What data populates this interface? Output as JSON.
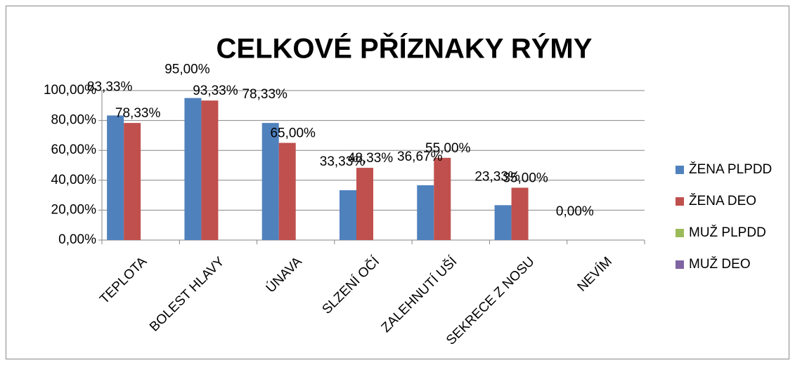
{
  "chart_data": {
    "type": "bar",
    "title": "CELKOVÉ PŘÍZNAKY RÝMY",
    "categories": [
      "TEPLOTA",
      "BOLEST HLAVY",
      "ÚNAVA",
      "SLZENÍ OČÍ",
      "ZALEHNUTÍ UŠÍ",
      "SEKRECE Z NOSU",
      "NEVÍM"
    ],
    "series": [
      {
        "name": "ŽENA PLPDD",
        "color": "#4f81bd",
        "values": [
          83.33,
          95,
          78.33,
          33.33,
          36.67,
          23.33,
          0
        ],
        "value_labels": [
          "83,33%",
          "95,00%",
          "78,33%",
          "33,33%",
          "36,67%",
          "23,33%",
          "0,00%"
        ]
      },
      {
        "name": "ŽENA DEO",
        "color": "#c0504d",
        "values": [
          78.33,
          93.33,
          65,
          48.33,
          55,
          35,
          null
        ],
        "value_labels": [
          "78,33%",
          "93,33%",
          "65,00%",
          "48,33%",
          "55,00%",
          "35,00%",
          null
        ]
      },
      {
        "name": "MUŽ PLPDD",
        "color": "#9bbb59",
        "values": [
          null,
          null,
          null,
          null,
          null,
          null,
          null
        ]
      },
      {
        "name": "MUŽ DEO",
        "color": "#8064a2",
        "values": [
          null,
          null,
          null,
          null,
          null,
          null,
          null
        ]
      }
    ],
    "ylim": [
      0,
      100
    ],
    "yticks": [
      {
        "value": 0,
        "label": "0,00%"
      },
      {
        "value": 20,
        "label": "20,00%"
      },
      {
        "value": 40,
        "label": "40,00%"
      },
      {
        "value": 60,
        "label": "60,00%"
      },
      {
        "value": 80,
        "label": "80,00%"
      },
      {
        "value": 100,
        "label": "100,00%"
      }
    ],
    "grid": true,
    "legend": "right"
  }
}
